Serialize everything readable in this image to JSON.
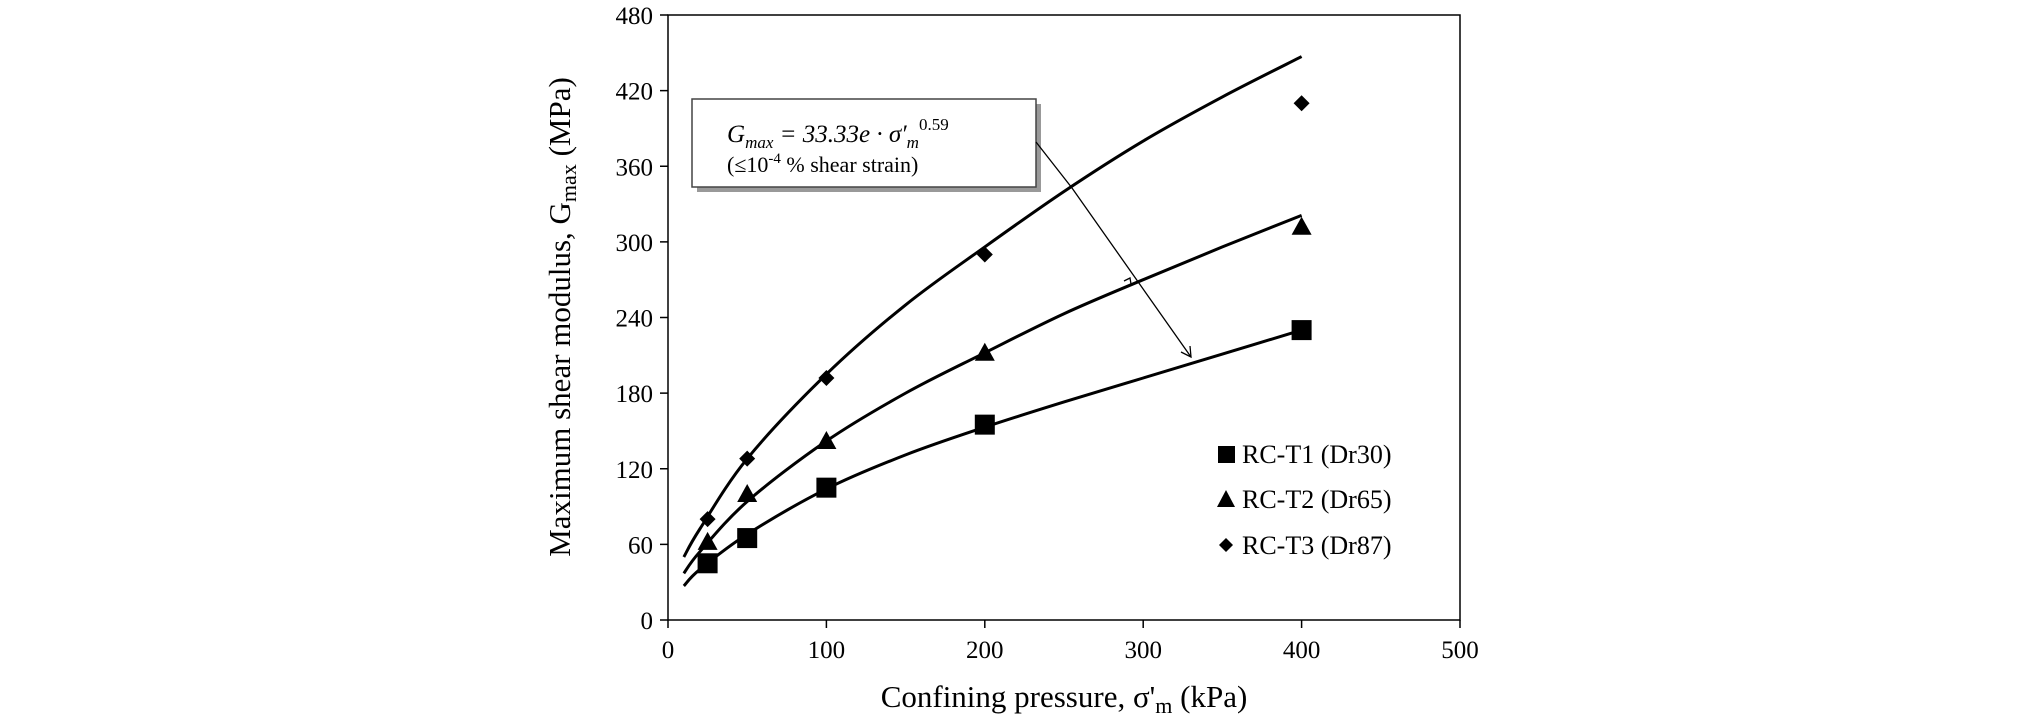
{
  "chart_data": {
    "type": "scatter",
    "xlabel_main": "Confining pressure, σ'",
    "xlabel_sub": "m",
    "xlabel_tail": " (kPa)",
    "ylabel_main": "Maximum shear modulus, G",
    "ylabel_sub": "max",
    "ylabel_tail": " (MPa)",
    "xlim": [
      0,
      500
    ],
    "ylim": [
      0,
      480
    ],
    "xticks": [
      0,
      100,
      200,
      300,
      400,
      500
    ],
    "yticks": [
      0,
      60,
      120,
      180,
      240,
      300,
      360,
      420,
      480
    ],
    "grid": false,
    "legend_position": "bottom-right",
    "series": [
      {
        "name": "RC-T1 (Dr30)",
        "marker": "square",
        "x": [
          25,
          50,
          100,
          200,
          400
        ],
        "y": [
          45,
          65,
          105,
          155,
          230
        ],
        "fit": {
          "x": [
            10,
            20,
            50,
            100,
            150,
            200,
            250,
            300,
            350,
            400
          ],
          "y": [
            27,
            40,
            68,
            104,
            131,
            153,
            173,
            192,
            211,
            230
          ]
        }
      },
      {
        "name": "RC-T2 (Dr65)",
        "marker": "triangle",
        "x": [
          25,
          50,
          100,
          200,
          400
        ],
        "y": [
          62,
          100,
          142,
          212,
          312
        ],
        "fit": {
          "x": [
            10,
            20,
            50,
            100,
            150,
            200,
            250,
            300,
            350,
            400
          ],
          "y": [
            37,
            54,
            94,
            142,
            180,
            212,
            243,
            270,
            296,
            321
          ]
        }
      },
      {
        "name": "RC-T3 (Dr87)",
        "marker": "diamond",
        "x": [
          25,
          50,
          100,
          200,
          400
        ],
        "y": [
          80,
          128,
          192,
          290,
          410
        ],
        "fit": {
          "x": [
            10,
            20,
            50,
            100,
            150,
            200,
            250,
            300,
            350,
            400
          ],
          "y": [
            50,
            72,
            128,
            195,
            250,
            296,
            340,
            380,
            415,
            447
          ]
        }
      }
    ],
    "annotation": {
      "equation_lhs": "G",
      "equation_lhs_sub": "max",
      "equation_rhs": " = 33.33e · σ′",
      "equation_rhs_sub": "m",
      "equation_exponent": "0.59",
      "note_prefix": "(≤10",
      "note_exponent": "-4",
      "note_suffix": " % shear strain)"
    }
  }
}
